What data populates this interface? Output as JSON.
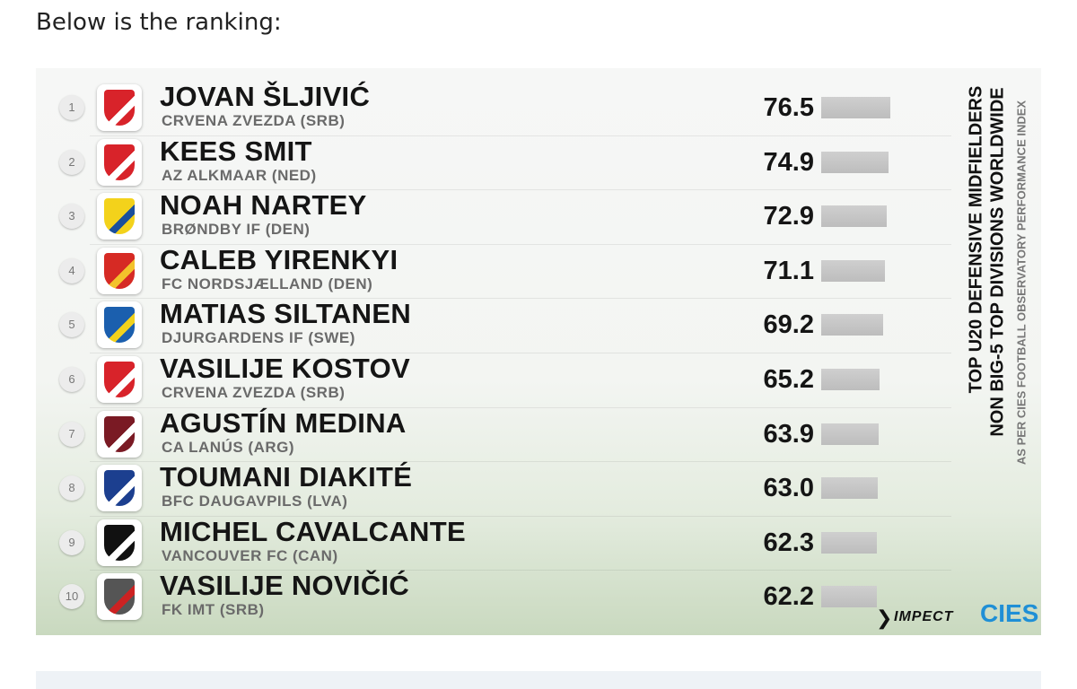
{
  "intro": "Below is the ranking:",
  "ranking": {
    "rows": [
      {
        "rank": 1,
        "name": "JOVAN ŠLJIVIĆ",
        "club": "CRVENA ZVEZDA (SRB)",
        "score": "76.5"
      },
      {
        "rank": 2,
        "name": "KEES SMIT",
        "club": "AZ ALKMAAR (NED)",
        "score": "74.9"
      },
      {
        "rank": 3,
        "name": "NOAH NARTEY",
        "club": "BRØNDBY IF (DEN)",
        "score": "72.9"
      },
      {
        "rank": 4,
        "name": "CALEB YIRENKYI",
        "club": "FC NORDSJÆLLAND (DEN)",
        "score": "71.1"
      },
      {
        "rank": 5,
        "name": "MATIAS SILTANEN",
        "club": "DJURGARDENS IF (SWE)",
        "score": "69.2"
      },
      {
        "rank": 6,
        "name": "VASILIJE KOSTOV",
        "club": "CRVENA ZVEZDA (SRB)",
        "score": "65.2"
      },
      {
        "rank": 7,
        "name": "AGUSTÍN MEDINA",
        "club": "CA LANÚS (ARG)",
        "score": "63.9"
      },
      {
        "rank": 8,
        "name": "TOUMANI DIAKITÉ",
        "club": "BFC DAUGAVPILS (LVA)",
        "score": "63.0"
      },
      {
        "rank": 9,
        "name": "MICHEL CAVALCANTE",
        "club": "VANCOUVER FC (CAN)",
        "score": "62.3"
      },
      {
        "rank": 10,
        "name": "VASILIJE NOVIČIĆ",
        "club": "FK IMT (SRB)",
        "score": "62.2"
      }
    ]
  },
  "side_text": [
    "TOP U20 DEFENSIVE MIDFIELDERS",
    "NON BIG-5 TOP DIVISIONS WORLDWIDE",
    "AS PER CIES FOOTBALL OBSERVATORY PERFORMANCE INDEX"
  ],
  "logos": [
    "IMPECT",
    "CIES"
  ]
}
